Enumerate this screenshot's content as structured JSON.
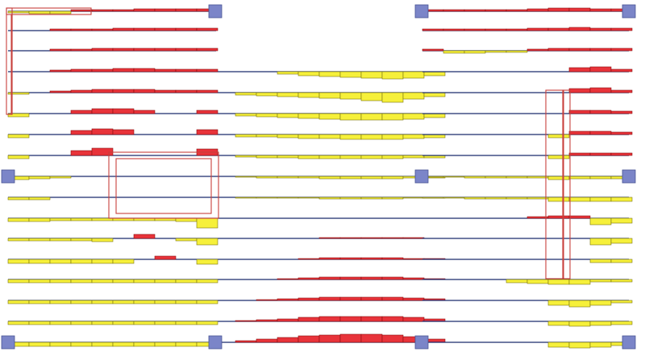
{
  "colors": {
    "background": "#ffffff",
    "baseline": "#1a2a6c",
    "positive_fill": "#e8333a",
    "positive_edge": "#8a1010",
    "negative_fill": "#f6f03a",
    "negative_edge": "#7a7410",
    "node_fill": "#7b85c8",
    "node_edge": "#4a5494",
    "selection_outline": "#c8403c"
  },
  "icons": {
    "support_node": "square-support-node-icon",
    "selection": "rectangle-selection-outline-icon"
  }
}
